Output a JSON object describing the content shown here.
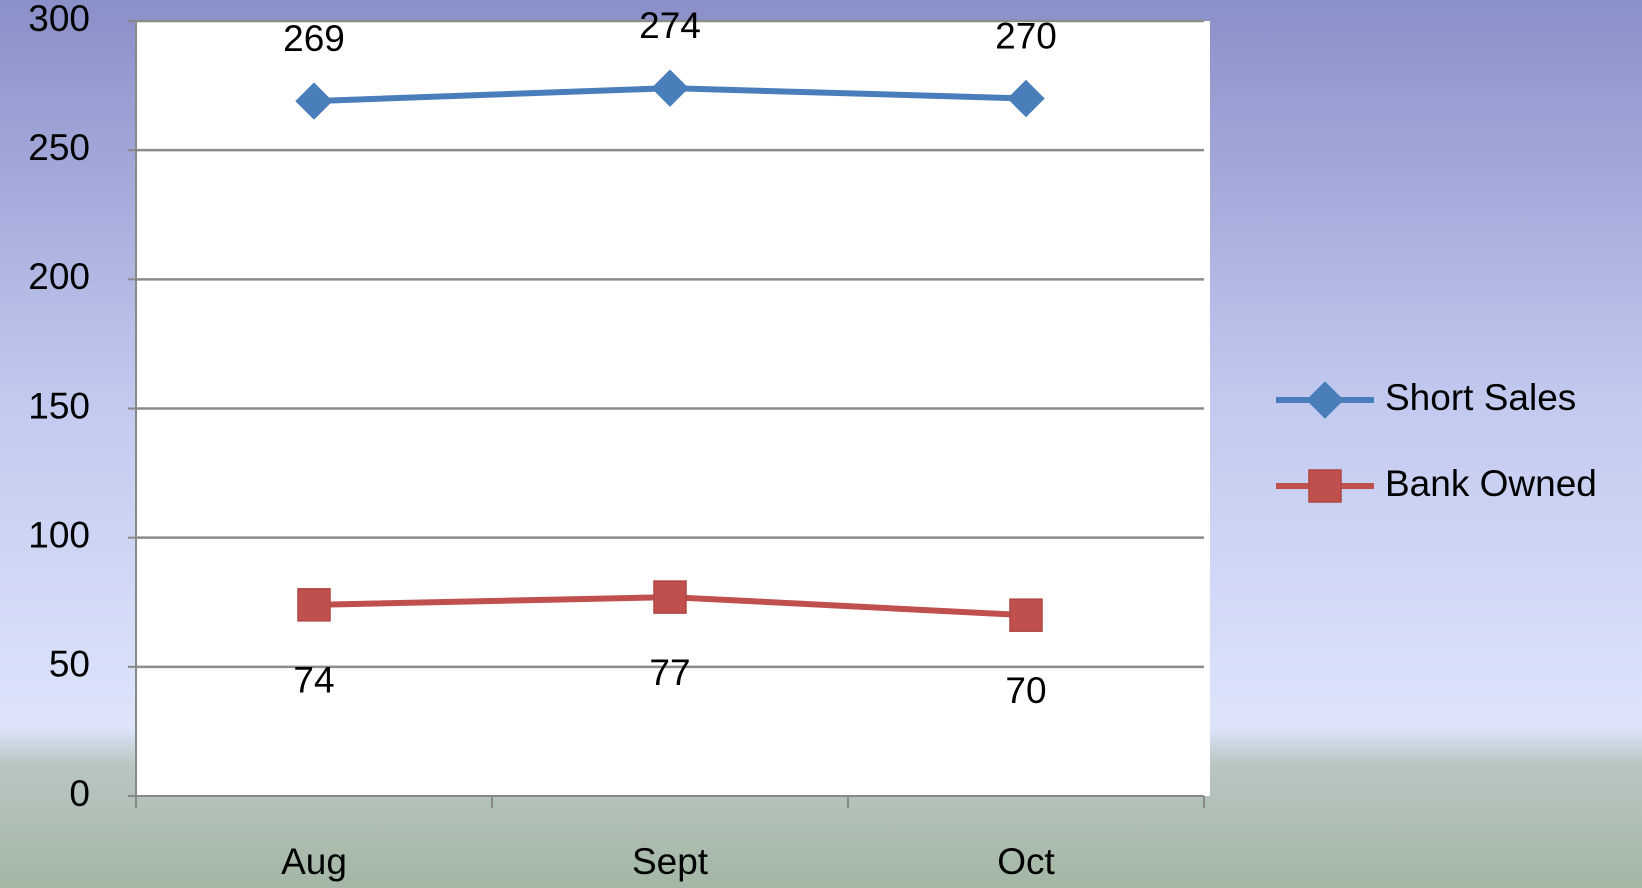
{
  "chart_data": {
    "type": "line",
    "categories": [
      "Aug",
      "Sept",
      "Oct"
    ],
    "series": [
      {
        "name": "Short Sales",
        "color": "#4a7ebb",
        "values": [
          269,
          274,
          270
        ]
      },
      {
        "name": "Bank Owned",
        "color": "#c0504d",
        "values": [
          74,
          77,
          70
        ]
      }
    ],
    "ylim": [
      0,
      300
    ],
    "yticks": [
      0,
      50,
      100,
      150,
      200,
      250,
      300
    ],
    "grid": true,
    "legend": "right"
  }
}
